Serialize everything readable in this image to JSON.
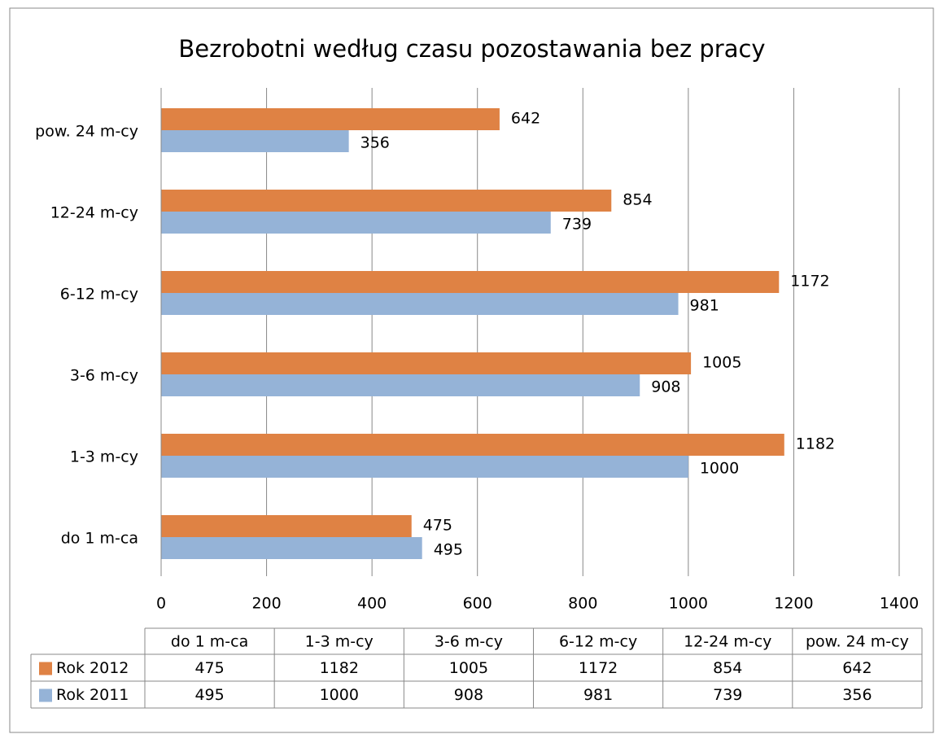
{
  "chart_data": {
    "type": "bar",
    "orientation": "horizontal",
    "title": "Bezrobotni według czasu pozostawania bez pracy",
    "categories": [
      "do 1 m-ca",
      "1-3 m-cy",
      "3-6 m-cy",
      "6-12 m-cy",
      "12-24 m-cy",
      "pow. 24 m-cy"
    ],
    "series": [
      {
        "name": "Rok 2012",
        "color": "#df8244",
        "values": [
          475,
          1182,
          1005,
          1172,
          854,
          642
        ]
      },
      {
        "name": "Rok 2011",
        "color": "#95b3d7",
        "values": [
          495,
          1000,
          908,
          981,
          739,
          356
        ]
      }
    ],
    "xlim": [
      0,
      1400
    ],
    "xticks": [
      0,
      200,
      400,
      600,
      800,
      1000,
      1200,
      1400
    ],
    "grid": true,
    "data_table": true
  }
}
